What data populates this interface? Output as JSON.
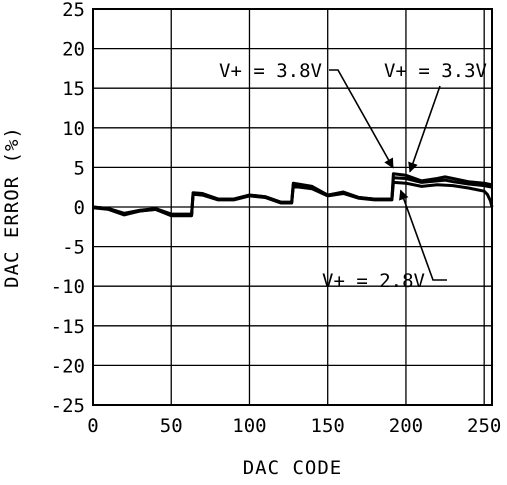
{
  "chart_data": {
    "type": "line",
    "title": "",
    "xlabel": "DAC CODE",
    "ylabel": "DAC ERROR (%)",
    "xlim": [
      0,
      255
    ],
    "ylim": [
      -25,
      25
    ],
    "x_ticks": [
      0,
      50,
      100,
      150,
      200,
      250
    ],
    "y_ticks": [
      -25,
      -20,
      -15,
      -10,
      -5,
      0,
      5,
      10,
      15,
      20,
      25
    ],
    "x_tick_labels": [
      "0",
      "50",
      "100",
      "150",
      "200",
      "250"
    ],
    "y_tick_labels": [
      "-25",
      "-20",
      "-15",
      "-10",
      "-5",
      "0",
      "5",
      "10",
      "15",
      "20",
      "25"
    ],
    "grid": true,
    "legend": "none",
    "line_color": "#000000",
    "series": [
      {
        "label_text": "V+ = 3.8V",
        "x": [
          0,
          10,
          20,
          30,
          40,
          50,
          55,
          63,
          64,
          70,
          80,
          90,
          100,
          110,
          120,
          127,
          128,
          140,
          150,
          160,
          170,
          180,
          190,
          191,
          192,
          200,
          210,
          220,
          225,
          230,
          240,
          250,
          255
        ],
        "y": [
          0.0,
          -0.2,
          -0.9,
          -0.5,
          -0.3,
          -1.0,
          -1.0,
          -1.0,
          1.8,
          1.7,
          1.0,
          1.0,
          1.5,
          1.3,
          0.6,
          0.6,
          3.0,
          2.6,
          1.5,
          1.9,
          1.2,
          1.0,
          1.0,
          1.0,
          4.2,
          4.0,
          3.3,
          3.6,
          3.8,
          3.6,
          3.2,
          3.0,
          2.8
        ]
      },
      {
        "label_text": "V+ = 3.3V",
        "x": [
          0,
          10,
          20,
          30,
          40,
          50,
          55,
          63,
          64,
          70,
          80,
          90,
          100,
          110,
          120,
          127,
          128,
          140,
          150,
          160,
          170,
          180,
          190,
          191,
          192,
          200,
          210,
          220,
          225,
          230,
          240,
          250,
          255
        ],
        "y": [
          0.0,
          -0.2,
          -0.8,
          -0.4,
          -0.2,
          -0.9,
          -0.9,
          -0.9,
          1.7,
          1.6,
          1.0,
          1.0,
          1.5,
          1.3,
          0.6,
          0.6,
          2.8,
          2.5,
          1.5,
          1.8,
          1.2,
          1.0,
          1.0,
          1.0,
          3.7,
          3.6,
          3.1,
          3.3,
          3.4,
          3.2,
          2.9,
          2.7,
          2.5
        ]
      },
      {
        "label_text": "V+ = 2.8V",
        "x": [
          0,
          10,
          20,
          30,
          40,
          50,
          55,
          63,
          64,
          70,
          80,
          90,
          100,
          110,
          120,
          127,
          128,
          140,
          150,
          160,
          170,
          180,
          190,
          191,
          192,
          200,
          210,
          220,
          230,
          240,
          250,
          252,
          254,
          255
        ],
        "y": [
          -0.1,
          -0.3,
          -1.0,
          -0.5,
          -0.3,
          -1.1,
          -1.1,
          -1.1,
          1.6,
          1.5,
          0.9,
          0.9,
          1.4,
          1.2,
          0.5,
          0.5,
          2.6,
          2.3,
          1.4,
          1.7,
          1.1,
          0.9,
          0.9,
          0.9,
          3.1,
          3.0,
          2.6,
          2.8,
          2.7,
          2.4,
          2.0,
          1.6,
          0.8,
          0.0
        ]
      }
    ],
    "annotations": [
      {
        "text": "V+ = 3.8V",
        "target": [
          193,
          4.2
        ]
      },
      {
        "text": "V+ = 3.3V",
        "target": [
          200,
          3.7
        ]
      },
      {
        "text": "V+ = 2.8V",
        "target": [
          196,
          3.1
        ]
      }
    ]
  }
}
